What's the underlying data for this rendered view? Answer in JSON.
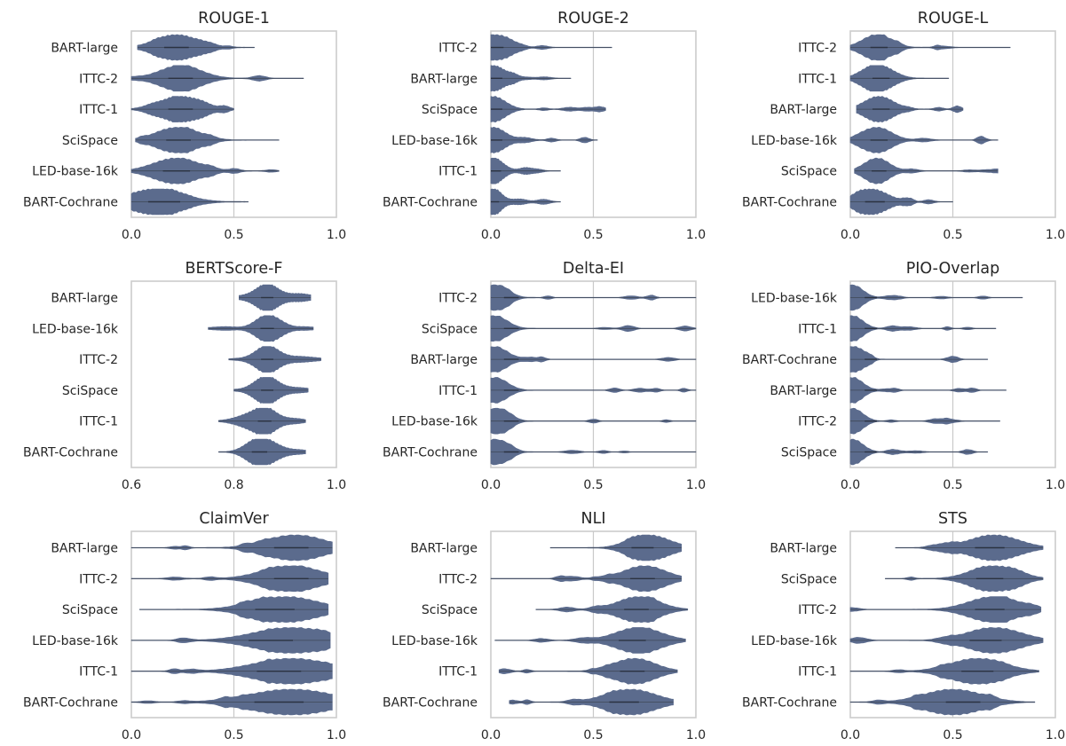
{
  "figure": {
    "violin_color": "#5b6b8d",
    "frame_color": "#cccccc",
    "ref_line_color": "#c9c9c9"
  },
  "chart_data": [
    {
      "type": "violin",
      "title": "ROUGE-1",
      "xlim": [
        0.0,
        1.0
      ],
      "xticks": [
        "0.0",
        "0.5",
        "1.0"
      ],
      "ref_line": 0.5,
      "series": [
        {
          "name": "BART-large",
          "min": 0.03,
          "max": 0.6,
          "median": 0.22,
          "spread": 0.1,
          "mode": 0.22
        },
        {
          "name": "ITTC-2",
          "min": 0.0,
          "max": 0.84,
          "median": 0.24,
          "spread": 0.1,
          "mode": 0.24
        },
        {
          "name": "ITTC-1",
          "min": 0.0,
          "max": 0.5,
          "median": 0.24,
          "spread": 0.1,
          "mode": 0.24
        },
        {
          "name": "SciSpace",
          "min": 0.02,
          "max": 0.72,
          "median": 0.23,
          "spread": 0.1,
          "mode": 0.23
        },
        {
          "name": "LED-base-16k",
          "min": 0.0,
          "max": 0.72,
          "median": 0.22,
          "spread": 0.11,
          "mode": 0.22
        },
        {
          "name": "BART-Cochrane",
          "min": 0.0,
          "max": 0.57,
          "median": 0.16,
          "spread": 0.13,
          "mode": 0.12
        }
      ]
    },
    {
      "type": "violin",
      "title": "ROUGE-2",
      "xlim": [
        0.0,
        1.0
      ],
      "xticks": [
        "0.0",
        "0.5",
        "1.0"
      ],
      "ref_line": 0.5,
      "series": [
        {
          "name": "ITTC-2",
          "min": 0.0,
          "max": 0.59,
          "median": 0.02,
          "spread": 0.07,
          "mode": 0.01
        },
        {
          "name": "BART-large",
          "min": 0.0,
          "max": 0.39,
          "median": 0.02,
          "spread": 0.06,
          "mode": 0.01
        },
        {
          "name": "SciSpace",
          "min": 0.0,
          "max": 0.56,
          "median": 0.02,
          "spread": 0.06,
          "mode": 0.01
        },
        {
          "name": "LED-base-16k",
          "min": 0.0,
          "max": 0.52,
          "median": 0.02,
          "spread": 0.06,
          "mode": 0.01
        },
        {
          "name": "ITTC-1",
          "min": 0.0,
          "max": 0.34,
          "median": 0.02,
          "spread": 0.05,
          "mode": 0.01
        },
        {
          "name": "BART-Cochrane",
          "min": 0.0,
          "max": 0.34,
          "median": 0.01,
          "spread": 0.05,
          "mode": 0.0
        }
      ]
    },
    {
      "type": "violin",
      "title": "ROUGE-L",
      "xlim": [
        0.0,
        1.0
      ],
      "xticks": [
        "0.0",
        "0.5",
        "1.0"
      ],
      "ref_line": 0.5,
      "series": [
        {
          "name": "ITTC-2",
          "min": 0.0,
          "max": 0.78,
          "median": 0.14,
          "spread": 0.07,
          "mode": 0.13
        },
        {
          "name": "ITTC-1",
          "min": 0.0,
          "max": 0.48,
          "median": 0.15,
          "spread": 0.07,
          "mode": 0.14
        },
        {
          "name": "BART-large",
          "min": 0.03,
          "max": 0.55,
          "median": 0.15,
          "spread": 0.07,
          "mode": 0.14
        },
        {
          "name": "LED-base-16k",
          "min": 0.0,
          "max": 0.72,
          "median": 0.14,
          "spread": 0.07,
          "mode": 0.13
        },
        {
          "name": "SciSpace",
          "min": 0.02,
          "max": 0.72,
          "median": 0.14,
          "spread": 0.06,
          "mode": 0.13
        },
        {
          "name": "BART-Cochrane",
          "min": 0.0,
          "max": 0.5,
          "median": 0.12,
          "spread": 0.08,
          "mode": 0.1
        }
      ]
    },
    {
      "type": "violin",
      "title": "BERTScore-F",
      "xlim": [
        0.6,
        1.0
      ],
      "xticks": [
        "0.6",
        "0.8",
        "1.0"
      ],
      "ref_line": 0.8,
      "series": [
        {
          "name": "BART-large",
          "min": 0.81,
          "max": 0.95,
          "median": 0.865,
          "spread": 0.02,
          "mode": 0.865
        },
        {
          "name": "LED-base-16k",
          "min": 0.75,
          "max": 0.955,
          "median": 0.865,
          "spread": 0.022,
          "mode": 0.865
        },
        {
          "name": "ITTC-2",
          "min": 0.79,
          "max": 0.97,
          "median": 0.865,
          "spread": 0.02,
          "mode": 0.865
        },
        {
          "name": "SciSpace",
          "min": 0.8,
          "max": 0.945,
          "median": 0.865,
          "spread": 0.02,
          "mode": 0.865
        },
        {
          "name": "ITTC-1",
          "min": 0.77,
          "max": 0.94,
          "median": 0.86,
          "spread": 0.022,
          "mode": 0.86
        },
        {
          "name": "BART-Cochrane",
          "min": 0.77,
          "max": 0.94,
          "median": 0.85,
          "spread": 0.025,
          "mode": 0.85
        }
      ]
    },
    {
      "type": "violin",
      "title": "Delta-EI",
      "xlim": [
        0.0,
        1.0
      ],
      "xticks": [
        "0.0",
        "0.5",
        "1.0"
      ],
      "ref_line": 0.5,
      "series": [
        {
          "name": "ITTC-2",
          "min": 0.0,
          "max": 1.0,
          "median": 0.1,
          "spread": 0.06,
          "mode": 0.02
        },
        {
          "name": "SciSpace",
          "min": 0.0,
          "max": 1.0,
          "median": 0.1,
          "spread": 0.06,
          "mode": 0.02
        },
        {
          "name": "BART-large",
          "min": 0.0,
          "max": 1.0,
          "median": 0.1,
          "spread": 0.06,
          "mode": 0.02
        },
        {
          "name": "ITTC-1",
          "min": 0.0,
          "max": 1.0,
          "median": 0.1,
          "spread": 0.06,
          "mode": 0.02
        },
        {
          "name": "LED-base-16k",
          "min": 0.0,
          "max": 1.0,
          "median": 0.1,
          "spread": 0.06,
          "mode": 0.02
        },
        {
          "name": "BART-Cochrane",
          "min": 0.0,
          "max": 1.0,
          "median": 0.1,
          "spread": 0.06,
          "mode": 0.02
        }
      ]
    },
    {
      "type": "violin",
      "title": "PIO-Overlap",
      "xlim": [
        0.0,
        1.0
      ],
      "xticks": [
        "0.0",
        "0.5",
        "1.0"
      ],
      "ref_line": 0.5,
      "series": [
        {
          "name": "LED-base-16k",
          "min": 0.0,
          "max": 0.84,
          "median": 0.1,
          "spread": 0.05,
          "mode": 0.01
        },
        {
          "name": "ITTC-1",
          "min": 0.0,
          "max": 0.71,
          "median": 0.1,
          "spread": 0.05,
          "mode": 0.01
        },
        {
          "name": "BART-Cochrane",
          "min": 0.0,
          "max": 0.67,
          "median": 0.1,
          "spread": 0.05,
          "mode": 0.01
        },
        {
          "name": "BART-large",
          "min": 0.0,
          "max": 0.76,
          "median": 0.1,
          "spread": 0.05,
          "mode": 0.01
        },
        {
          "name": "ITTC-2",
          "min": 0.0,
          "max": 0.73,
          "median": 0.1,
          "spread": 0.05,
          "mode": 0.01
        },
        {
          "name": "SciSpace",
          "min": 0.0,
          "max": 0.67,
          "median": 0.1,
          "spread": 0.05,
          "mode": 0.01
        }
      ]
    },
    {
      "type": "violin",
      "title": "ClaimVer",
      "xlim": [
        0.0,
        1.0
      ],
      "xticks": [
        "0.0",
        "0.5",
        "1.0"
      ],
      "ref_line": 0.5,
      "series": [
        {
          "name": "BART-large",
          "min": 0.0,
          "max": 0.98,
          "median": 0.78,
          "spread": 0.14,
          "mode": 0.8
        },
        {
          "name": "ITTC-2",
          "min": 0.0,
          "max": 0.96,
          "median": 0.78,
          "spread": 0.14,
          "mode": 0.78
        },
        {
          "name": "SciSpace",
          "min": 0.04,
          "max": 0.96,
          "median": 0.7,
          "spread": 0.16,
          "mode": 0.75
        },
        {
          "name": "LED-base-16k",
          "min": 0.0,
          "max": 0.97,
          "median": 0.68,
          "spread": 0.18,
          "mode": 0.78
        },
        {
          "name": "ITTC-1",
          "min": 0.0,
          "max": 0.98,
          "median": 0.72,
          "spread": 0.18,
          "mode": 0.78
        },
        {
          "name": "BART-Cochrane",
          "min": 0.0,
          "max": 0.98,
          "median": 0.72,
          "spread": 0.2,
          "mode": 0.78
        }
      ]
    },
    {
      "type": "violin",
      "title": "NLI",
      "xlim": [
        0.0,
        1.0
      ],
      "xticks": [
        "0.0",
        "0.5",
        "1.0"
      ],
      "ref_line": 0.5,
      "series": [
        {
          "name": "BART-large",
          "min": 0.29,
          "max": 0.93,
          "median": 0.74,
          "spread": 0.09,
          "mode": 0.76
        },
        {
          "name": "ITTC-2",
          "min": 0.0,
          "max": 0.93,
          "median": 0.74,
          "spread": 0.1,
          "mode": 0.75
        },
        {
          "name": "SciSpace",
          "min": 0.22,
          "max": 0.96,
          "median": 0.71,
          "spread": 0.1,
          "mode": 0.72
        },
        {
          "name": "LED-base-16k",
          "min": 0.02,
          "max": 0.95,
          "median": 0.69,
          "spread": 0.11,
          "mode": 0.72
        },
        {
          "name": "ITTC-1",
          "min": 0.04,
          "max": 0.91,
          "median": 0.69,
          "spread": 0.1,
          "mode": 0.7
        },
        {
          "name": "BART-Cochrane",
          "min": 0.09,
          "max": 0.89,
          "median": 0.65,
          "spread": 0.12,
          "mode": 0.68
        }
      ]
    },
    {
      "type": "violin",
      "title": "STS",
      "xlim": [
        0.0,
        1.0
      ],
      "xticks": [
        "0.0",
        "0.5",
        "1.0"
      ],
      "ref_line": 0.5,
      "series": [
        {
          "name": "BART-large",
          "min": 0.22,
          "max": 0.94,
          "median": 0.68,
          "spread": 0.12,
          "mode": 0.7
        },
        {
          "name": "SciSpace",
          "min": 0.17,
          "max": 0.94,
          "median": 0.68,
          "spread": 0.11,
          "mode": 0.7
        },
        {
          "name": "ITTC-2",
          "min": 0.0,
          "max": 0.93,
          "median": 0.68,
          "spread": 0.12,
          "mode": 0.7
        },
        {
          "name": "LED-base-16k",
          "min": 0.0,
          "max": 0.94,
          "median": 0.66,
          "spread": 0.13,
          "mode": 0.7
        },
        {
          "name": "ITTC-1",
          "min": 0.0,
          "max": 0.92,
          "median": 0.62,
          "spread": 0.13,
          "mode": 0.62
        },
        {
          "name": "BART-Cochrane",
          "min": 0.0,
          "max": 0.9,
          "median": 0.55,
          "spread": 0.14,
          "mode": 0.5
        }
      ]
    }
  ]
}
